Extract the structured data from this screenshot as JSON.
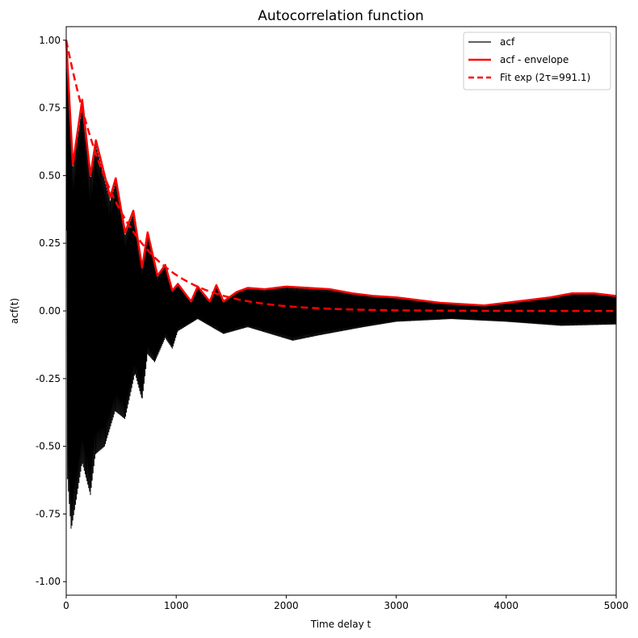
{
  "chart_data": {
    "type": "line",
    "title": "Autocorrelation function",
    "xlabel": "Time delay t",
    "ylabel": "acf(t)",
    "xlim": [
      0,
      5000
    ],
    "ylim": [
      -1.05,
      1.05
    ],
    "x_ticks": [
      "0",
      "1000",
      "2000",
      "3000",
      "4000",
      "5000"
    ],
    "y_ticks": [
      "-1.00",
      "-0.75",
      "-0.50",
      "-0.25",
      "0.00",
      "0.25",
      "0.50",
      "0.75",
      "1.00"
    ],
    "grid": false,
    "legend": {
      "placement": "top-right",
      "entries": [
        "acf",
        "acf - envelope",
        "Fit exp (2τ=991.1)"
      ]
    },
    "colors": {
      "acf": "#000000",
      "envelope": "#ff0000",
      "fit": "#ff0000"
    },
    "series": [
      {
        "name": "acf",
        "style": "solid-thin",
        "upper": {
          "t": [
            0,
            60,
            145,
            220,
            270,
            350,
            400,
            450,
            535,
            610,
            690,
            740,
            830,
            900,
            965,
            1015,
            1135,
            1195,
            1305,
            1365,
            1430,
            1550,
            1650,
            1800,
            2000,
            2200,
            2400,
            2600,
            2800,
            3000,
            3200,
            3400,
            3600,
            3800,
            4000,
            4200,
            4400,
            4600,
            4800,
            5000
          ],
          "v": [
            1.0,
            0.54,
            0.78,
            0.5,
            0.63,
            0.5,
            0.42,
            0.49,
            0.29,
            0.37,
            0.16,
            0.29,
            0.13,
            0.17,
            0.075,
            0.1,
            0.035,
            0.09,
            0.035,
            0.095,
            0.035,
            0.07,
            0.085,
            0.08,
            0.09,
            0.085,
            0.08,
            0.065,
            0.055,
            0.05,
            0.04,
            0.03,
            0.025,
            0.02,
            0.03,
            0.04,
            0.05,
            0.065,
            0.065,
            0.055
          ]
        },
        "lower": {
          "t": [
            0,
            10,
            45,
            95,
            145,
            220,
            265,
            350,
            445,
            535,
            625,
            690,
            740,
            805,
            900,
            965,
            1015,
            1195,
            1430,
            1650,
            2060,
            2300,
            2700,
            3000,
            3500,
            4000,
            4500,
            5000
          ],
          "v": [
            0.9,
            -0.61,
            -0.81,
            -0.69,
            -0.56,
            -0.68,
            -0.53,
            -0.5,
            -0.37,
            -0.4,
            -0.23,
            -0.33,
            -0.16,
            -0.19,
            -0.1,
            -0.14,
            -0.075,
            -0.03,
            -0.085,
            -0.06,
            -0.11,
            -0.09,
            -0.06,
            -0.04,
            -0.03,
            -0.04,
            -0.055,
            -0.05
          ]
        }
      },
      {
        "name": "acf - envelope",
        "style": "solid-thick",
        "t": [
          0,
          60,
          145,
          220,
          270,
          350,
          400,
          450,
          535,
          610,
          690,
          740,
          830,
          900,
          965,
          1015,
          1135,
          1195,
          1305,
          1365,
          1430,
          1550,
          1650,
          1800,
          2000,
          2200,
          2400,
          2600,
          2800,
          3000,
          3200,
          3400,
          3600,
          3800,
          4000,
          4200,
          4400,
          4600,
          4800,
          5000
        ],
        "v": [
          1.0,
          0.54,
          0.78,
          0.5,
          0.63,
          0.5,
          0.42,
          0.49,
          0.29,
          0.37,
          0.16,
          0.29,
          0.13,
          0.17,
          0.075,
          0.1,
          0.035,
          0.09,
          0.035,
          0.095,
          0.035,
          0.07,
          0.085,
          0.08,
          0.09,
          0.085,
          0.08,
          0.065,
          0.055,
          0.05,
          0.04,
          0.03,
          0.025,
          0.02,
          0.03,
          0.04,
          0.05,
          0.065,
          0.065,
          0.055
        ]
      },
      {
        "name": "Fit exp (2τ=991.1)",
        "style": "dashed",
        "function": "exp(-2t/991.1)",
        "two_tau": 991.1
      }
    ]
  }
}
